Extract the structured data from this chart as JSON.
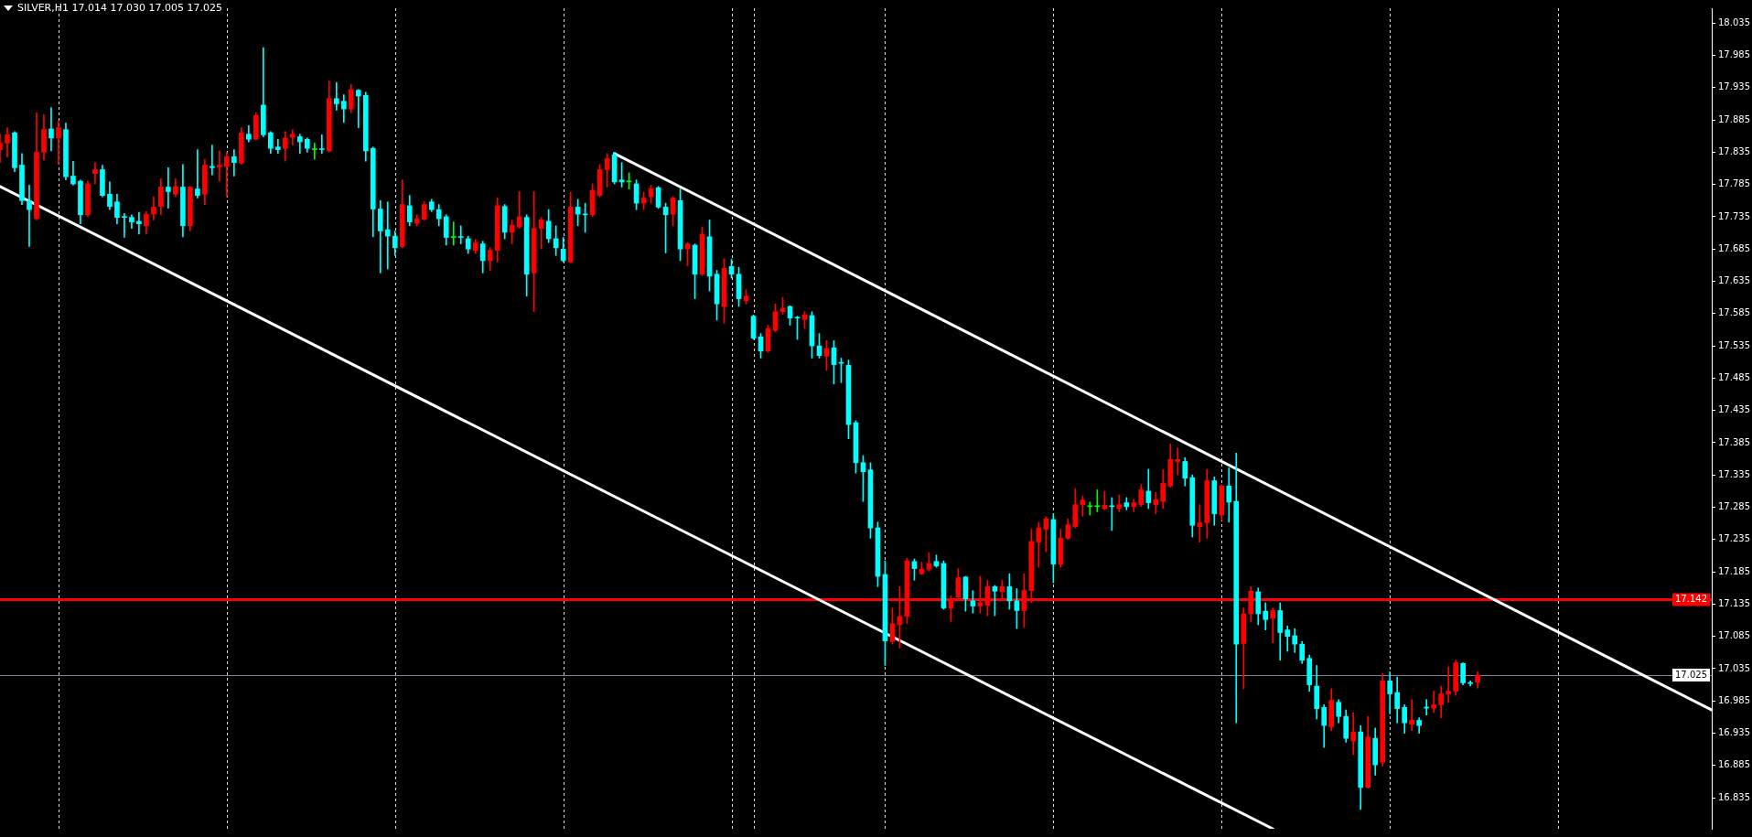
{
  "chart_data": {
    "type": "candlestick",
    "title": "SILVER,H1 17.014 17.030 17.005 17.025",
    "categories": [
      null,
      null,
      null,
      null,
      null,
      null,
      null,
      null,
      null,
      null,
      null,
      null,
      null,
      null,
      null,
      null,
      null,
      null,
      null,
      null,
      null,
      null,
      null,
      null,
      null,
      null,
      null,
      null,
      null,
      null,
      null,
      null,
      null,
      null,
      null,
      null,
      null,
      null,
      null,
      null,
      null,
      null,
      null,
      null,
      null,
      null,
      null,
      null,
      null,
      null,
      null,
      null,
      null,
      null,
      null,
      null,
      null,
      null,
      null,
      null,
      null,
      null,
      null,
      null,
      null,
      null,
      null,
      null,
      null,
      null,
      null,
      null,
      null,
      null,
      null,
      null,
      null,
      null,
      null,
      null,
      null,
      null,
      null,
      null,
      null,
      null,
      null,
      null,
      null,
      null,
      null,
      null,
      null,
      null,
      null,
      null,
      null,
      null,
      null,
      null,
      null,
      null,
      null,
      null,
      null,
      null,
      null,
      null,
      null,
      null,
      null,
      null,
      null,
      null,
      null,
      null,
      null,
      null,
      null,
      null,
      null,
      null,
      null,
      null,
      null,
      null,
      null,
      null,
      null,
      null,
      null,
      null,
      null,
      null,
      null,
      null,
      null,
      null,
      null,
      null,
      null,
      null,
      null,
      null,
      null,
      null,
      null,
      null,
      null,
      null,
      null,
      null,
      null,
      null,
      null,
      null,
      null,
      null,
      null,
      null,
      null,
      null,
      null,
      null,
      null,
      null,
      null,
      null,
      null,
      null,
      null,
      null,
      null,
      null,
      null,
      null,
      null,
      null,
      null,
      null,
      null,
      null,
      null,
      null,
      null,
      null,
      null,
      null,
      null,
      null,
      null,
      null,
      null,
      null,
      null,
      null,
      null,
      null,
      null,
      null,
      null,
      null,
      null,
      null,
      null,
      null,
      null,
      null,
      null,
      null,
      null,
      null,
      null,
      null,
      null,
      null,
      null,
      null,
      null,
      null,
      null,
      null,
      null,
      null,
      null,
      null,
      null,
      null,
      null,
      null,
      null,
      null,
      null,
      null,
      null
    ],
    "ohlc": [
      [
        17.839,
        17.863,
        17.819,
        17.849
      ],
      [
        17.849,
        17.873,
        17.827,
        17.862
      ],
      [
        17.865,
        17.867,
        17.805,
        17.811
      ],
      [
        17.815,
        17.833,
        17.754,
        17.76
      ],
      [
        17.76,
        17.784,
        17.689,
        17.746
      ],
      [
        17.732,
        17.896,
        17.73,
        17.835
      ],
      [
        17.835,
        17.893,
        17.823,
        17.87
      ],
      [
        17.871,
        17.904,
        17.837,
        17.857
      ],
      [
        17.857,
        17.884,
        17.816,
        17.873
      ],
      [
        17.87,
        17.88,
        17.792,
        17.797
      ],
      [
        17.798,
        17.821,
        17.784,
        17.786
      ],
      [
        17.79,
        17.792,
        17.724,
        17.738
      ],
      [
        17.738,
        17.79,
        17.735,
        17.786
      ],
      [
        17.802,
        17.819,
        17.786,
        17.808
      ],
      [
        17.808,
        17.815,
        17.766,
        17.768
      ],
      [
        17.77,
        17.789,
        17.746,
        17.751
      ],
      [
        17.758,
        17.77,
        17.724,
        17.734
      ],
      [
        17.735,
        17.74,
        17.703,
        17.734
      ],
      [
        17.734,
        17.738,
        17.717,
        17.727
      ],
      [
        17.728,
        17.742,
        17.708,
        17.724
      ],
      [
        17.721,
        17.743,
        17.708,
        17.739
      ],
      [
        17.739,
        17.766,
        17.73,
        17.75
      ],
      [
        17.751,
        17.794,
        17.738,
        17.781
      ],
      [
        17.781,
        17.811,
        17.748,
        17.774
      ],
      [
        17.77,
        17.794,
        17.766,
        17.782
      ],
      [
        17.781,
        17.816,
        17.704,
        17.721
      ],
      [
        17.721,
        17.782,
        17.713,
        17.781
      ],
      [
        17.778,
        17.839,
        17.764,
        17.768
      ],
      [
        17.77,
        17.824,
        17.754,
        17.815
      ],
      [
        17.813,
        17.846,
        17.8,
        17.811
      ],
      [
        17.812,
        17.837,
        17.79,
        17.815
      ],
      [
        17.813,
        17.835,
        17.766,
        17.828
      ],
      [
        17.828,
        17.839,
        17.798,
        17.819
      ],
      [
        17.818,
        17.873,
        17.816,
        17.865
      ],
      [
        17.863,
        17.876,
        17.851,
        17.855
      ],
      [
        17.855,
        17.896,
        17.854,
        17.892
      ],
      [
        17.908,
        17.997,
        17.859,
        17.862
      ],
      [
        17.865,
        17.867,
        17.833,
        17.841
      ],
      [
        17.843,
        17.855,
        17.833,
        17.839
      ],
      [
        17.841,
        17.867,
        17.821,
        17.857
      ],
      [
        17.858,
        17.87,
        17.846,
        17.863
      ],
      [
        17.859,
        17.863,
        17.833,
        17.851
      ],
      [
        17.855,
        17.857,
        17.835,
        17.841
      ],
      [
        17.839,
        17.849,
        17.824,
        17.839
      ],
      [
        17.839,
        17.862,
        17.833,
        17.839
      ],
      [
        17.837,
        17.946,
        17.835,
        17.918
      ],
      [
        17.918,
        17.943,
        17.9,
        17.91
      ],
      [
        17.914,
        17.924,
        17.881,
        17.902
      ],
      [
        17.902,
        17.94,
        17.896,
        17.932
      ],
      [
        17.931,
        17.932,
        17.873,
        17.922
      ],
      [
        17.923,
        17.928,
        17.821,
        17.837
      ],
      [
        17.841,
        17.843,
        17.704,
        17.747
      ],
      [
        17.747,
        17.76,
        17.648,
        17.713
      ],
      [
        17.715,
        17.758,
        17.654,
        17.705
      ],
      [
        17.705,
        17.713,
        17.675,
        17.687
      ],
      [
        17.689,
        17.792,
        17.687,
        17.754
      ],
      [
        17.752,
        17.768,
        17.721,
        17.727
      ],
      [
        17.725,
        17.738,
        17.721,
        17.732
      ],
      [
        17.731,
        17.758,
        17.73,
        17.754
      ],
      [
        17.758,
        17.762,
        17.743,
        17.746
      ],
      [
        17.746,
        17.754,
        17.721,
        17.732
      ],
      [
        17.735,
        17.738,
        17.691,
        17.703
      ],
      [
        17.703,
        17.727,
        17.691,
        17.703
      ],
      [
        17.703,
        17.721,
        17.693,
        17.703
      ],
      [
        17.701,
        17.705,
        17.678,
        17.685
      ],
      [
        17.683,
        17.7,
        17.678,
        17.695
      ],
      [
        17.693,
        17.697,
        17.648,
        17.667
      ],
      [
        17.667,
        17.687,
        17.652,
        17.683
      ],
      [
        17.683,
        17.764,
        17.665,
        17.752
      ],
      [
        17.751,
        17.754,
        17.701,
        17.711
      ],
      [
        17.711,
        17.73,
        17.693,
        17.722
      ],
      [
        17.719,
        17.774,
        17.717,
        17.735
      ],
      [
        17.734,
        17.738,
        17.612,
        17.646
      ],
      [
        17.648,
        17.774,
        17.588,
        17.717
      ],
      [
        17.717,
        17.734,
        17.685,
        17.73
      ],
      [
        17.728,
        17.746,
        17.695,
        17.701
      ],
      [
        17.701,
        17.721,
        17.675,
        17.687
      ],
      [
        17.685,
        17.703,
        17.665,
        17.667
      ],
      [
        17.665,
        17.773,
        17.664,
        17.75
      ],
      [
        17.75,
        17.762,
        17.721,
        17.739
      ],
      [
        17.738,
        17.756,
        17.711,
        17.738
      ],
      [
        17.738,
        17.786,
        17.735,
        17.776
      ],
      [
        17.768,
        17.816,
        17.766,
        17.808
      ],
      [
        17.808,
        17.833,
        17.781,
        17.825
      ],
      [
        17.831,
        17.835,
        17.786,
        17.789
      ],
      [
        17.792,
        17.819,
        17.781,
        17.789
      ],
      [
        17.789,
        17.803,
        17.778,
        17.789
      ],
      [
        17.786,
        17.792,
        17.746,
        17.756
      ],
      [
        17.756,
        17.773,
        17.746,
        17.764
      ],
      [
        17.766,
        17.784,
        17.756,
        17.778
      ],
      [
        17.78,
        17.782,
        17.748,
        17.75
      ],
      [
        17.75,
        17.756,
        17.679,
        17.738
      ],
      [
        17.739,
        17.766,
        17.721,
        17.764
      ],
      [
        17.76,
        17.778,
        17.667,
        17.685
      ],
      [
        17.685,
        17.695,
        17.659,
        17.693
      ],
      [
        17.691,
        17.693,
        17.608,
        17.646
      ],
      [
        17.646,
        17.719,
        17.644,
        17.708
      ],
      [
        17.704,
        17.73,
        17.62,
        17.643
      ],
      [
        17.646,
        17.652,
        17.575,
        17.6
      ],
      [
        17.596,
        17.67,
        17.57,
        17.655
      ],
      [
        17.658,
        17.669,
        17.64,
        17.646
      ],
      [
        17.646,
        17.657,
        17.596,
        17.608
      ],
      [
        17.605,
        17.622,
        17.6,
        17.612
      ],
      [
        17.581,
        17.583,
        17.545,
        17.547
      ],
      [
        17.549,
        17.554,
        17.516,
        17.527
      ],
      [
        17.527,
        17.567,
        17.525,
        17.562
      ],
      [
        17.559,
        17.6,
        17.557,
        17.588
      ],
      [
        17.588,
        17.61,
        17.584,
        17.593
      ],
      [
        17.596,
        17.597,
        17.567,
        17.578
      ],
      [
        17.578,
        17.581,
        17.545,
        17.578
      ],
      [
        17.576,
        17.588,
        17.562,
        17.583
      ],
      [
        17.582,
        17.588,
        17.516,
        17.535
      ],
      [
        17.535,
        17.554,
        17.516,
        17.52
      ],
      [
        17.519,
        17.543,
        17.497,
        17.531
      ],
      [
        17.532,
        17.543,
        17.476,
        17.506
      ],
      [
        17.508,
        17.516,
        17.478,
        17.508
      ],
      [
        17.505,
        17.513,
        17.391,
        17.413
      ],
      [
        17.416,
        17.419,
        17.338,
        17.354
      ],
      [
        17.354,
        17.365,
        17.294,
        17.34
      ],
      [
        17.343,
        17.354,
        17.237,
        17.253
      ],
      [
        17.253,
        17.262,
        17.162,
        17.178
      ],
      [
        17.181,
        17.202,
        17.04,
        17.078
      ],
      [
        17.077,
        17.129,
        17.073,
        17.105
      ],
      [
        17.103,
        17.162,
        17.067,
        17.116
      ],
      [
        17.116,
        17.206,
        17.105,
        17.202
      ],
      [
        17.201,
        17.205,
        17.172,
        17.19
      ],
      [
        17.182,
        17.2,
        17.181,
        17.189
      ],
      [
        17.189,
        17.215,
        17.186,
        17.198
      ],
      [
        17.201,
        17.211,
        17.192,
        17.194
      ],
      [
        17.198,
        17.202,
        17.127,
        17.129
      ],
      [
        17.129,
        17.148,
        17.108,
        17.143
      ],
      [
        17.146,
        17.19,
        17.143,
        17.176
      ],
      [
        17.177,
        17.178,
        17.124,
        17.143
      ],
      [
        17.14,
        17.156,
        17.121,
        17.132
      ],
      [
        17.132,
        17.178,
        17.121,
        17.137
      ],
      [
        17.133,
        17.172,
        17.117,
        17.162
      ],
      [
        17.162,
        17.164,
        17.117,
        17.155
      ],
      [
        17.154,
        17.172,
        17.141,
        17.162
      ],
      [
        17.162,
        17.182,
        17.127,
        17.14
      ],
      [
        17.14,
        17.159,
        17.097,
        17.125
      ],
      [
        17.125,
        17.182,
        17.099,
        17.156
      ],
      [
        17.156,
        17.251,
        17.137,
        17.232
      ],
      [
        17.231,
        17.262,
        17.192,
        17.253
      ],
      [
        17.251,
        17.27,
        17.216,
        17.267
      ],
      [
        17.266,
        17.275,
        17.168,
        17.197
      ],
      [
        17.197,
        17.251,
        17.192,
        17.237
      ],
      [
        17.237,
        17.267,
        17.235,
        17.258
      ],
      [
        17.255,
        17.314,
        17.253,
        17.289
      ],
      [
        17.289,
        17.302,
        17.271,
        17.296
      ],
      [
        17.286,
        17.293,
        17.273,
        17.286
      ],
      [
        17.286,
        17.312,
        17.278,
        17.286
      ],
      [
        17.283,
        17.31,
        17.281,
        17.288
      ],
      [
        17.286,
        17.3,
        17.249,
        17.286
      ],
      [
        17.283,
        17.304,
        17.278,
        17.289
      ],
      [
        17.292,
        17.3,
        17.281,
        17.286
      ],
      [
        17.286,
        17.297,
        17.278,
        17.292
      ],
      [
        17.289,
        17.32,
        17.286,
        17.312
      ],
      [
        17.31,
        17.344,
        17.283,
        17.292
      ],
      [
        17.289,
        17.308,
        17.275,
        17.297
      ],
      [
        17.294,
        17.343,
        17.283,
        17.322
      ],
      [
        17.318,
        17.383,
        17.316,
        17.359
      ],
      [
        17.356,
        17.377,
        17.335,
        17.359
      ],
      [
        17.356,
        17.362,
        17.318,
        17.33
      ],
      [
        17.331,
        17.335,
        17.239,
        17.257
      ],
      [
        17.255,
        17.289,
        17.231,
        17.261
      ],
      [
        17.261,
        17.344,
        17.237,
        17.326
      ],
      [
        17.326,
        17.332,
        17.257,
        17.275
      ],
      [
        17.273,
        17.32,
        17.265,
        17.318
      ],
      [
        17.318,
        17.346,
        17.262,
        17.293
      ],
      [
        17.294,
        17.369,
        16.951,
        17.073
      ],
      [
        17.074,
        17.129,
        17.004,
        17.12
      ],
      [
        17.12,
        17.162,
        17.108,
        17.155
      ],
      [
        17.154,
        17.16,
        17.103,
        17.12
      ],
      [
        17.124,
        17.137,
        17.095,
        17.111
      ],
      [
        17.113,
        17.129,
        17.075,
        17.125
      ],
      [
        17.125,
        17.137,
        17.048,
        17.091
      ],
      [
        17.095,
        17.101,
        17.062,
        17.085
      ],
      [
        17.086,
        17.097,
        17.06,
        17.073
      ],
      [
        17.073,
        17.077,
        17.043,
        17.048
      ],
      [
        17.051,
        17.056,
        17.0,
        17.01
      ],
      [
        17.008,
        17.04,
        16.957,
        16.973
      ],
      [
        16.975,
        16.979,
        16.913,
        16.947
      ],
      [
        16.945,
        17.004,
        16.939,
        16.986
      ],
      [
        16.983,
        16.987,
        16.951,
        16.961
      ],
      [
        16.961,
        16.971,
        16.921,
        16.927
      ],
      [
        16.923,
        16.967,
        16.902,
        16.937
      ],
      [
        16.937,
        16.947,
        16.817,
        16.851
      ],
      [
        16.851,
        16.961,
        16.85,
        16.929
      ],
      [
        16.927,
        16.943,
        16.87,
        16.886
      ],
      [
        16.89,
        17.028,
        16.884,
        17.016
      ],
      [
        17.016,
        17.03,
        16.965,
        16.996
      ],
      [
        16.998,
        17.022,
        16.951,
        16.973
      ],
      [
        16.975,
        16.979,
        16.935,
        16.951
      ],
      [
        16.949,
        16.987,
        16.939,
        16.955
      ],
      [
        16.955,
        16.959,
        16.935,
        16.947
      ],
      [
        16.974,
        16.987,
        16.963,
        16.974
      ],
      [
        16.974,
        17.0,
        16.967,
        16.979
      ],
      [
        16.979,
        17.008,
        16.959,
        16.996
      ],
      [
        16.996,
        17.038,
        16.983,
        17.0
      ],
      [
        17.0,
        17.048,
        16.994,
        17.044
      ],
      [
        17.043,
        17.044,
        17.01,
        17.013
      ],
      [
        17.012,
        17.016,
        17.008,
        17.012
      ],
      [
        17.014,
        17.03,
        17.005,
        17.025
      ],
      null,
      null,
      null,
      null,
      null,
      null,
      null,
      null,
      null,
      null,
      null,
      null,
      null,
      null,
      null,
      null,
      null,
      null,
      null,
      null,
      null,
      null,
      null,
      null,
      null,
      null,
      null,
      null,
      null,
      null,
      null,
      null
    ],
    "colors": [
      "#ff0000",
      "#ff0000",
      "#00ffff",
      "#00ffff",
      "#00ffff",
      "#ff0000",
      "#ff0000",
      "#00ffff",
      "#ff0000",
      "#00ffff",
      "#00ffff",
      "#00ffff",
      "#ff0000",
      "#ff0000",
      "#00ffff",
      "#00ffff",
      "#00ffff",
      "#00ffff",
      "#00ffff",
      "#00ffff",
      "#ff0000",
      "#ff0000",
      "#ff0000",
      "#00ffff",
      "#ff0000",
      "#00ffff",
      "#ff0000",
      "#00ffff",
      "#ff0000",
      "#00ffff",
      "#ff0000",
      "#ff0000",
      "#00ffff",
      "#ff0000",
      "#00ffff",
      "#ff0000",
      "#00ffff",
      "#00ffff",
      "#00ffff",
      "#ff0000",
      "#ff0000",
      "#00ffff",
      "#00ffff",
      "#00ff00",
      "#00ffff",
      "#ff0000",
      "#00ffff",
      "#00ffff",
      "#ff0000",
      "#00ffff",
      "#00ffff",
      "#00ffff",
      "#00ffff",
      "#00ffff",
      "#00ffff",
      "#ff0000",
      "#00ffff",
      "#ff0000",
      "#ff0000",
      "#00ffff",
      "#00ffff",
      "#00ffff",
      "#00ff00",
      "#00ffff",
      "#00ffff",
      "#ff0000",
      "#00ffff",
      "#ff0000",
      "#ff0000",
      "#00ffff",
      "#ff0000",
      "#ff0000",
      "#00ffff",
      "#ff0000",
      "#ff0000",
      "#00ffff",
      "#00ffff",
      "#00ffff",
      "#ff0000",
      "#00ffff",
      "#00ffff",
      "#ff0000",
      "#ff0000",
      "#ff0000",
      "#00ffff",
      "#00ffff",
      "#00ff00",
      "#00ffff",
      "#ff0000",
      "#ff0000",
      "#00ffff",
      "#00ffff",
      "#ff0000",
      "#00ffff",
      "#ff0000",
      "#00ffff",
      "#ff0000",
      "#00ffff",
      "#00ffff",
      "#ff0000",
      "#00ffff",
      "#00ffff",
      "#ff0000",
      "#00ffff",
      "#00ffff",
      "#ff0000",
      "#ff0000",
      "#ff0000",
      "#00ffff",
      "#00ffff",
      "#ff0000",
      "#00ffff",
      "#00ffff",
      "#ff0000",
      "#00ffff",
      "#00ffff",
      "#00ffff",
      "#00ffff",
      "#00ffff",
      "#00ffff",
      "#00ffff",
      "#00ffff",
      "#ff0000",
      "#ff0000",
      "#ff0000",
      "#00ffff",
      "#ff0000",
      "#ff0000",
      "#00ffff",
      "#00ffff",
      "#ff0000",
      "#ff0000",
      "#00ffff",
      "#00ffff",
      "#ff0000",
      "#ff0000",
      "#00ffff",
      "#ff0000",
      "#00ffff",
      "#00ffff",
      "#ff0000",
      "#ff0000",
      "#ff0000",
      "#ff0000",
      "#00ffff",
      "#ff0000",
      "#ff0000",
      "#ff0000",
      "#ff0000",
      "#00ff00",
      "#00ff00",
      "#ff0000",
      "#00ffff",
      "#ff0000",
      "#00ffff",
      "#ff0000",
      "#ff0000",
      "#00ffff",
      "#ff0000",
      "#ff0000",
      "#ff0000",
      "#ff0000",
      "#00ffff",
      "#00ffff",
      "#ff0000",
      "#ff0000",
      "#00ffff",
      "#ff0000",
      "#00ffff",
      "#00ffff",
      "#ff0000",
      "#ff0000",
      "#00ffff",
      "#00ffff",
      "#ff0000",
      "#00ffff",
      "#00ffff",
      "#00ffff",
      "#00ffff",
      "#00ffff",
      "#00ffff",
      "#00ffff",
      "#ff0000",
      "#00ffff",
      "#00ffff",
      "#ff0000",
      "#00ffff",
      "#ff0000",
      "#00ffff",
      "#ff0000",
      "#00ffff",
      "#00ffff",
      "#00ffff",
      "#ff0000",
      "#00ffff",
      "#00ffff",
      "#ff0000",
      "#ff0000",
      "#ff0000",
      "#ff0000",
      "#00ffff",
      "#00ffff",
      "#ff0000",
      null,
      null,
      null,
      null,
      null,
      null,
      null,
      null,
      null,
      null,
      null,
      null,
      null,
      null,
      null,
      null,
      null,
      null,
      null,
      null,
      null,
      null,
      null,
      null,
      null,
      null,
      null,
      null,
      null,
      null,
      null,
      null
    ],
    "series": [
      {
        "type": "line",
        "color": "#ffffff",
        "values": [
          null,
          null,
          null,
          null,
          null,
          null,
          null,
          null,
          null,
          null,
          null,
          null,
          null,
          null,
          null,
          null,
          null,
          null,
          null,
          null,
          null,
          null,
          null,
          null,
          null,
          null,
          null,
          null,
          null,
          null,
          null,
          null,
          null,
          null,
          null,
          null,
          null,
          null,
          null,
          null,
          null,
          null,
          null,
          null,
          null,
          null,
          null,
          null,
          null,
          null,
          null,
          null,
          null,
          null,
          null,
          null,
          null,
          null,
          null,
          null,
          null,
          null,
          null,
          null,
          null,
          null,
          null,
          null,
          null,
          null,
          null,
          null,
          null,
          null,
          null,
          null,
          null,
          null,
          null,
          null,
          null,
          null,
          null,
          null,
          17.833,
          null,
          null,
          null,
          null,
          null,
          null,
          null,
          null,
          null,
          null,
          null,
          null,
          null,
          null,
          null,
          null,
          null,
          null,
          null,
          null,
          null,
          null,
          null,
          null,
          null,
          null,
          null,
          null,
          null,
          null,
          null,
          null,
          null,
          null,
          null,
          null,
          null,
          null,
          null,
          null,
          null,
          null,
          null,
          null,
          null,
          null,
          null,
          null,
          null,
          null,
          null,
          null,
          null,
          null,
          null,
          null,
          null,
          null,
          null,
          null,
          null,
          null,
          null,
          null,
          null,
          null,
          null,
          null,
          null,
          null,
          null,
          null,
          null,
          null,
          null,
          null,
          null,
          null,
          null,
          null,
          null,
          null,
          null,
          null,
          null,
          null,
          null,
          null,
          null,
          null,
          null,
          null,
          null,
          null,
          null,
          null,
          null,
          null,
          null,
          null,
          null,
          null,
          null,
          null,
          null,
          null,
          null,
          null,
          null,
          null,
          null,
          null,
          null,
          null,
          null,
          null,
          null,
          null,
          null,
          null,
          null,
          null,
          null,
          null,
          null,
          null,
          null,
          null,
          null,
          null,
          null,
          null,
          null,
          null,
          null,
          null,
          null,
          null,
          null,
          null,
          null,
          null,
          null,
          null,
          null,
          null,
          null,
          null,
          null,
          16.971
        ]
      },
      {
        "type": "line",
        "color": "#ffffff",
        "values": [
          17.782,
          null,
          null,
          null,
          null,
          null,
          null,
          null,
          null,
          null,
          null,
          null,
          null,
          null,
          null,
          null,
          null,
          null,
          null,
          null,
          null,
          null,
          null,
          null,
          null,
          null,
          null,
          null,
          null,
          null,
          null,
          null,
          null,
          null,
          null,
          null,
          null,
          null,
          null,
          null,
          null,
          null,
          null,
          null,
          null,
          null,
          null,
          null,
          null,
          null,
          null,
          null,
          null,
          null,
          null,
          null,
          null,
          null,
          null,
          null,
          null,
          null,
          null,
          null,
          null,
          null,
          null,
          null,
          null,
          null,
          null,
          null,
          null,
          null,
          null,
          null,
          null,
          null,
          null,
          null,
          null,
          null,
          null,
          null,
          null,
          null,
          null,
          null,
          null,
          null,
          null,
          null,
          null,
          null,
          null,
          null,
          null,
          null,
          null,
          null,
          null,
          null,
          null,
          null,
          null,
          null,
          null,
          null,
          null,
          null,
          null,
          null,
          null,
          null,
          null,
          null,
          null,
          null,
          null,
          null,
          null,
          null,
          null,
          null,
          null,
          null,
          null,
          null,
          null,
          null,
          null,
          null,
          null,
          null,
          null,
          null,
          null,
          null,
          null,
          null,
          null,
          null,
          null,
          null,
          null,
          null,
          null,
          null,
          null,
          null,
          null,
          null,
          null,
          null,
          null,
          null,
          null,
          null,
          null,
          null,
          null,
          null,
          null,
          null,
          null,
          null,
          null,
          null,
          null,
          null,
          null,
          null,
          null,
          null,
          16.787,
          null,
          null,
          null,
          null,
          null,
          null,
          null,
          null,
          null,
          null,
          null,
          null,
          null,
          null,
          null,
          null,
          null,
          null,
          null,
          null,
          null,
          null,
          null,
          null,
          null,
          null,
          null,
          null,
          null,
          null,
          null,
          null,
          null,
          null,
          null,
          null,
          null,
          null,
          null,
          null,
          null,
          null,
          null,
          null,
          null,
          null,
          null,
          null,
          null,
          null,
          null,
          null,
          null,
          null,
          null,
          null,
          null,
          null,
          null,
          null
        ]
      }
    ],
    "ylim": [
      16.787,
      18.058
    ],
    "yticks": [
      18.035,
      17.985,
      17.935,
      17.885,
      17.835,
      17.785,
      17.735,
      17.685,
      17.635,
      17.585,
      17.535,
      17.485,
      17.435,
      17.385,
      17.335,
      17.285,
      17.235,
      17.185,
      17.135,
      17.085,
      17.035,
      16.985,
      16.935,
      16.885,
      16.835
    ],
    "ref_lines": [
      {
        "axis": "y",
        "value": 17.142,
        "label": "17.142",
        "color": "#ff0000"
      },
      {
        "axis": "y",
        "value": 17.025,
        "label": "17.025",
        "color": "#778899"
      }
    ],
    "tick_labels": "y"
  }
}
